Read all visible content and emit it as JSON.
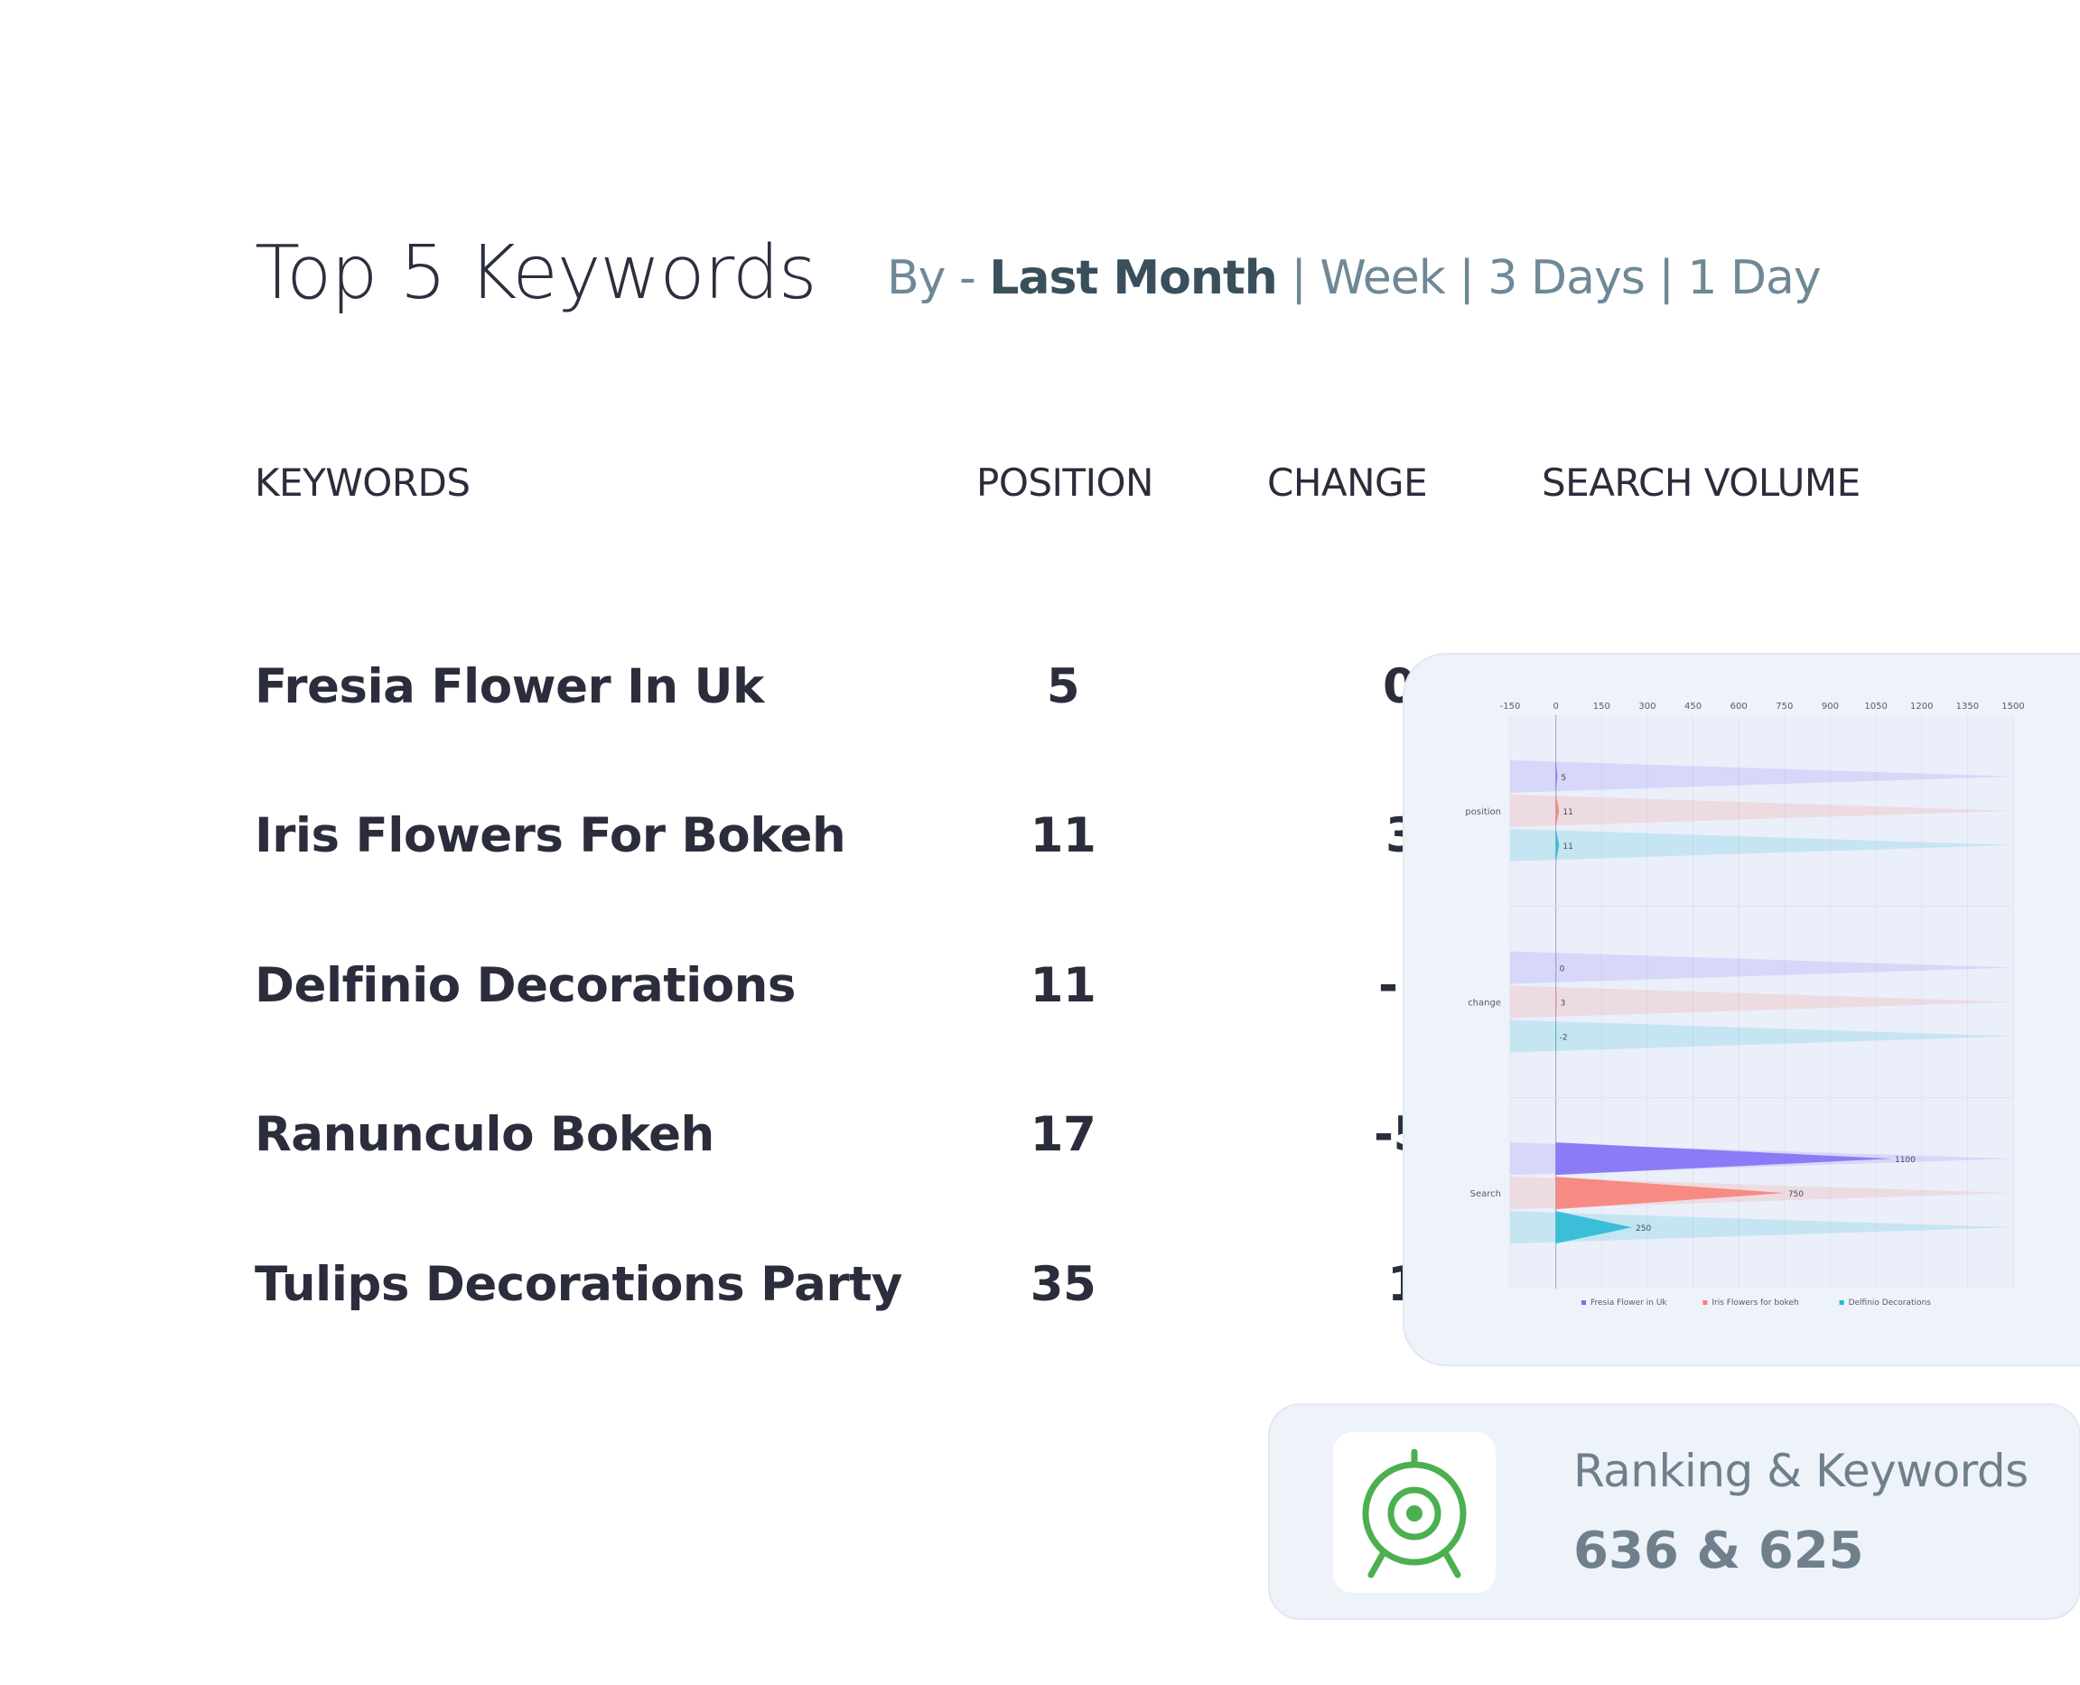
{
  "header": {
    "title": "Top 5 Keywords",
    "filter_prefix": "By - ",
    "filters": [
      {
        "label": "Last Month",
        "active": true
      },
      {
        "label": "Week",
        "active": false
      },
      {
        "label": "3 Days",
        "active": false
      },
      {
        "label": "1 Day",
        "active": false
      }
    ],
    "separator": " | "
  },
  "table": {
    "columns": [
      "KEYWORDS",
      "POSITION",
      "CHANGE",
      "SEARCH VOLUME"
    ],
    "rows": [
      {
        "keyword": "Fresia Flower In Uk",
        "position": "5",
        "change": "0"
      },
      {
        "keyword": "Iris Flowers For Bokeh",
        "position": "11",
        "change": "3"
      },
      {
        "keyword": "Delfinio Decorations",
        "position": "11",
        "change": "-"
      },
      {
        "keyword": "Ranunculo Bokeh",
        "position": "17",
        "change": "-5"
      },
      {
        "keyword": "Tulips Decorations Party",
        "position": "35",
        "change": "1"
      }
    ]
  },
  "chart_data": {
    "type": "bar",
    "orientation": "horizontal",
    "categories": [
      "position",
      "change",
      "Search"
    ],
    "x_ticks": [
      -150,
      0,
      150,
      300,
      450,
      600,
      750,
      900,
      1050,
      1200,
      1350,
      1500
    ],
    "xlim": [
      -150,
      1500
    ],
    "series": [
      {
        "name": "Fresia Flower in Uk",
        "values": [
          5,
          0,
          1100
        ],
        "color": "#7b6cf6"
      },
      {
        "name": "Iris Flowers for bokeh",
        "values": [
          11,
          3,
          750
        ],
        "color": "#f87d72"
      },
      {
        "name": "Delfinio Decorations",
        "values": [
          11,
          -2,
          250
        ],
        "color": "#22b8d4"
      }
    ],
    "legend": "bottom",
    "grid": true
  },
  "summary": {
    "label": "Ranking & Keywords",
    "value": "636 & 625",
    "icon": "target-icon",
    "icon_color": "#4caf50"
  }
}
